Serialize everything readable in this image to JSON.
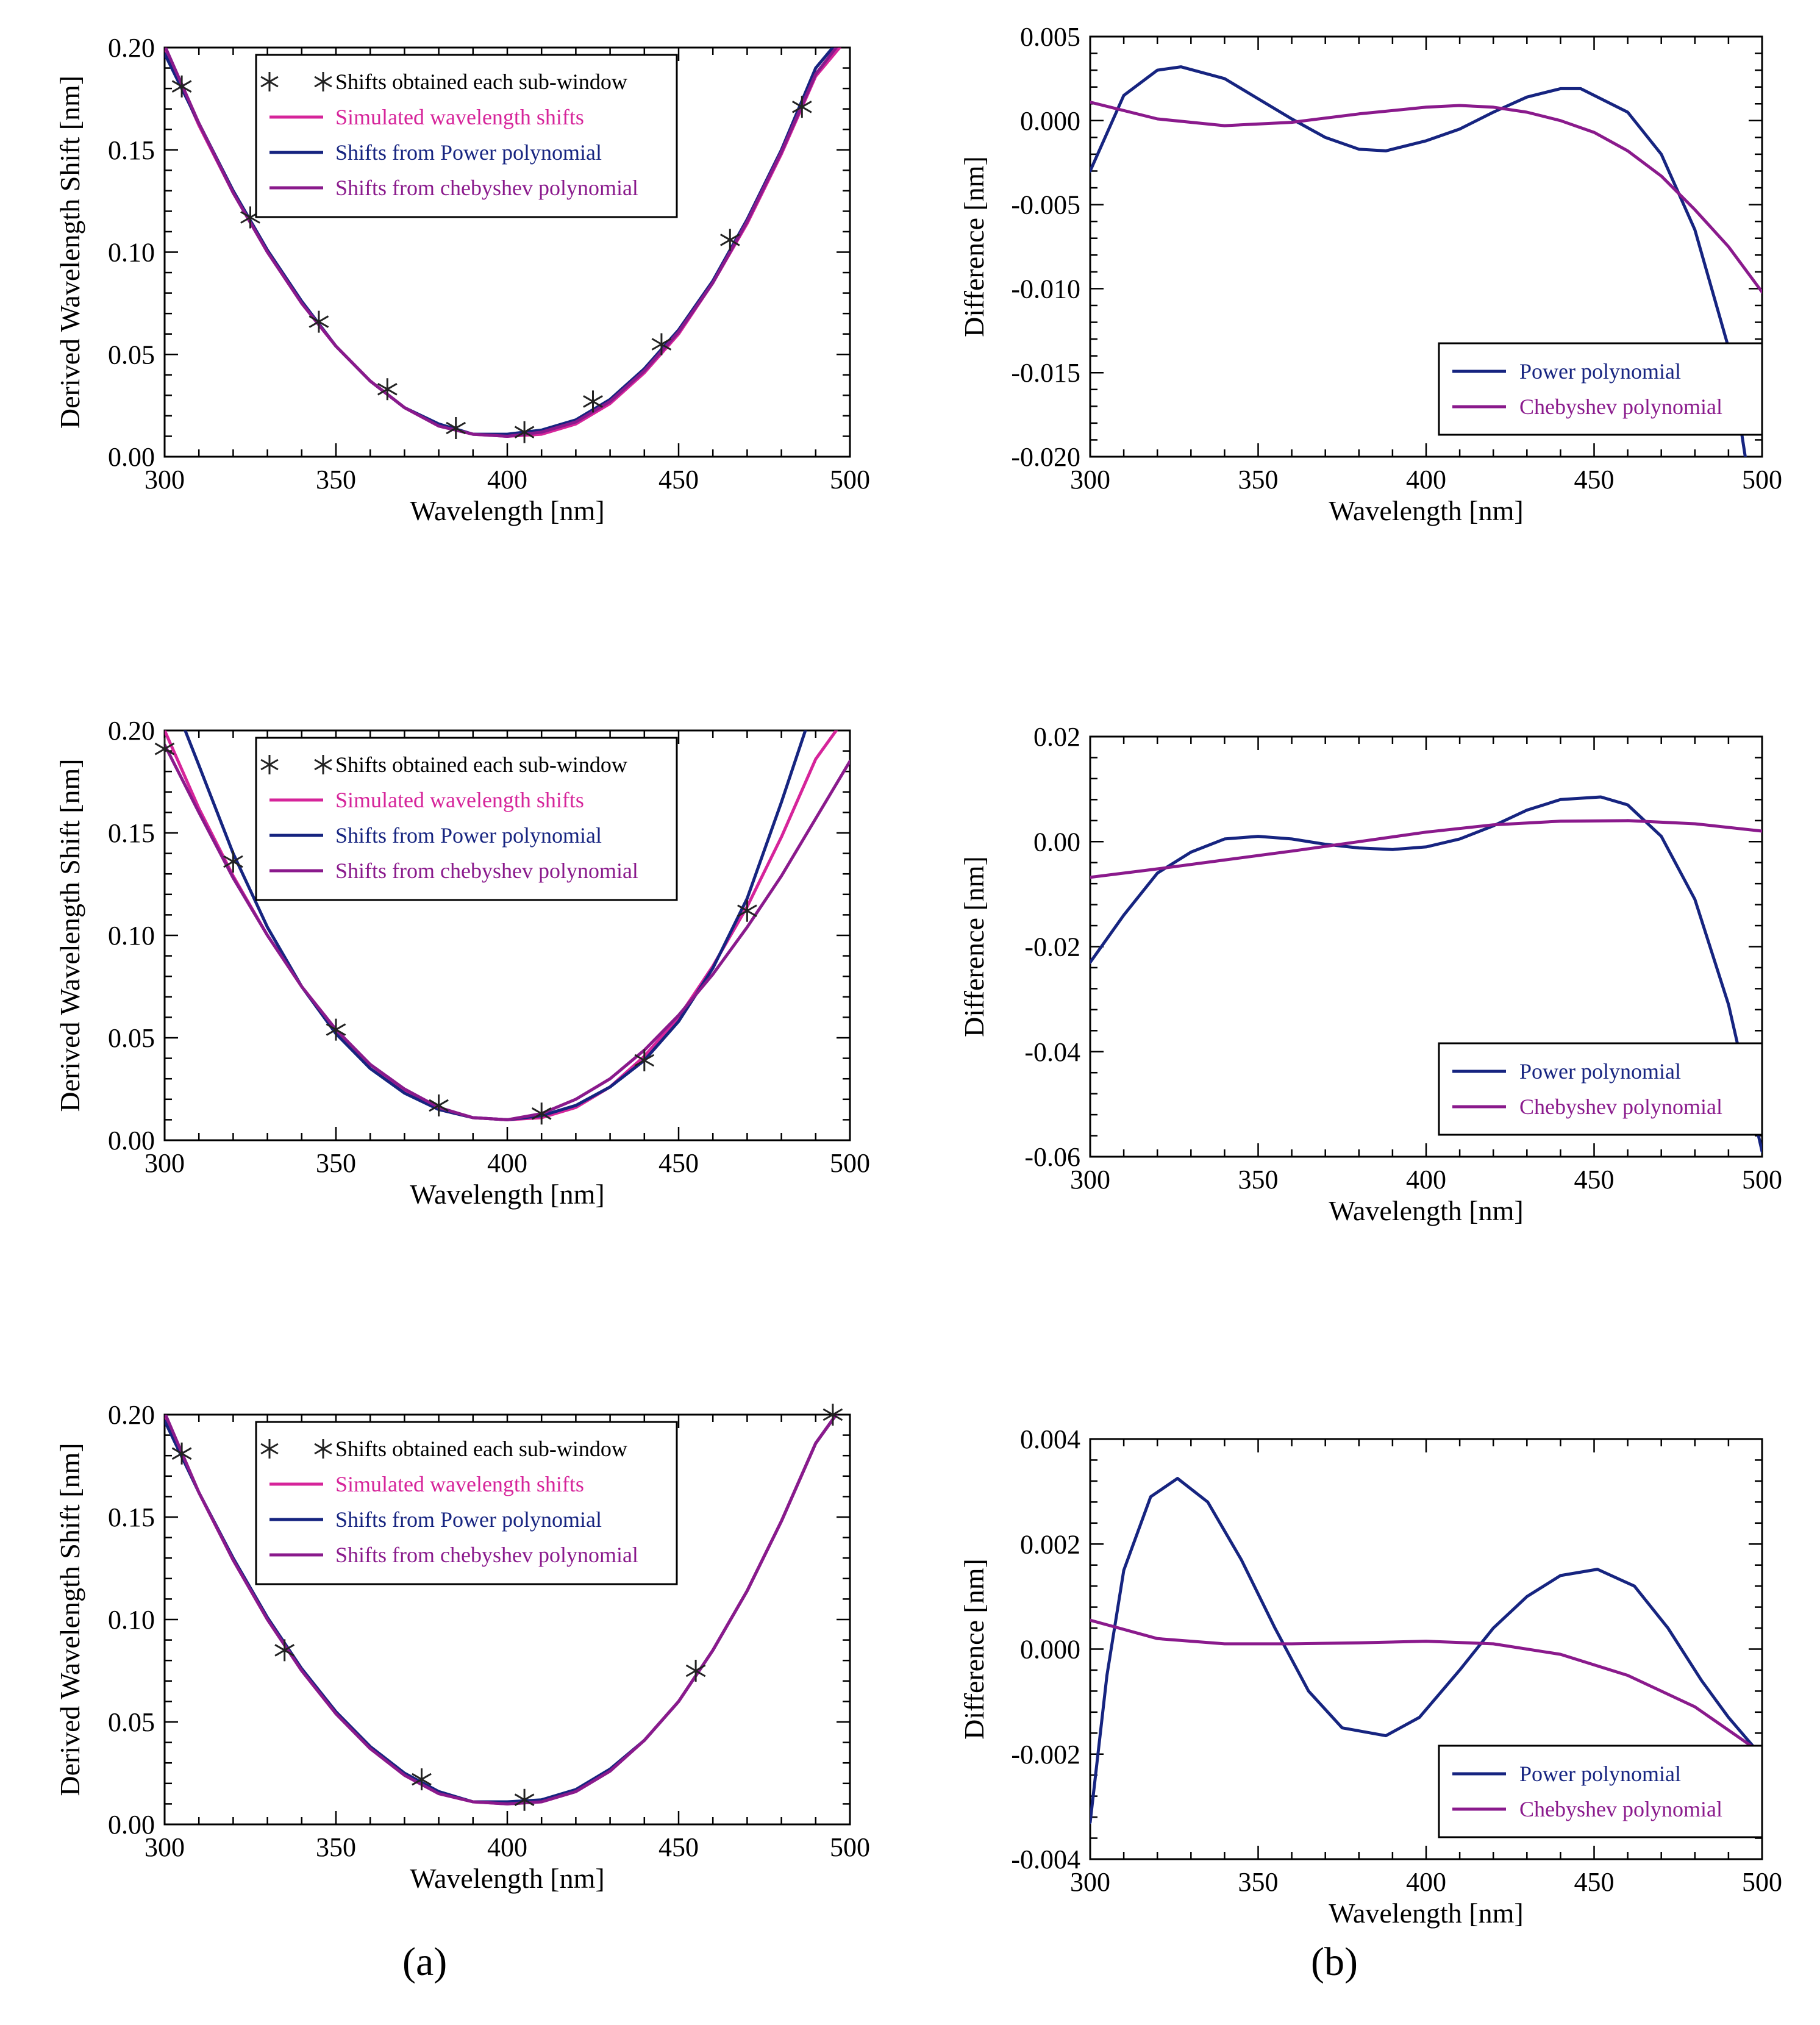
{
  "figure": {
    "labels": {
      "a": "(a)",
      "b": "(b)"
    },
    "colors": {
      "markers": "#222222",
      "simulated": "#d6249a",
      "power": "#162480",
      "chebyshev": "#8a1a8c"
    }
  },
  "chart_data": [
    {
      "id": "a1",
      "type": "line",
      "xlabel": "Wavelength [nm]",
      "ylabel": "Derived Wavelength Shift [nm]",
      "xlim": [
        300,
        500
      ],
      "ylim": [
        0.0,
        0.2
      ],
      "xticks": [
        300,
        350,
        400,
        450,
        500
      ],
      "xtick_labels": [
        "300",
        "350",
        "400",
        "450",
        "500"
      ],
      "yticks": [
        0,
        0.05,
        0.1,
        0.15,
        0.2
      ],
      "ytick_labels": [
        "0.00",
        "0.05",
        "0.10",
        "0.15",
        "0.20"
      ],
      "legend_position": "top-center",
      "legend": [
        "Shifts obtained each sub-window",
        "Simulated wavelength shifts",
        "Shifts from Power polynomial",
        "Shifts from chebyshev polynomial"
      ],
      "markers": {
        "name": "Shifts obtained each sub-window",
        "x": [
          305,
          325,
          345,
          365,
          385,
          405,
          425,
          445,
          465,
          486
        ],
        "y": [
          0.181,
          0.117,
          0.066,
          0.033,
          0.014,
          0.012,
          0.027,
          0.055,
          0.106,
          0.171
        ]
      },
      "series": [
        {
          "name": "Simulated wavelength shifts",
          "x": [
            300,
            310,
            320,
            330,
            340,
            350,
            360,
            370,
            380,
            390,
            400,
            410,
            420,
            430,
            440,
            450,
            460,
            470,
            480,
            490,
            497
          ],
          "y": [
            0.2,
            0.162,
            0.129,
            0.1,
            0.075,
            0.054,
            0.037,
            0.024,
            0.015,
            0.011,
            0.01,
            0.011,
            0.016,
            0.026,
            0.041,
            0.06,
            0.085,
            0.114,
            0.148,
            0.186,
            0.2
          ]
        },
        {
          "name": "Shifts from Power polynomial",
          "x": [
            300,
            310,
            320,
            330,
            340,
            350,
            360,
            370,
            380,
            390,
            400,
            410,
            420,
            430,
            440,
            450,
            460,
            470,
            480,
            490,
            495
          ],
          "y": [
            0.197,
            0.163,
            0.13,
            0.101,
            0.076,
            0.054,
            0.037,
            0.024,
            0.016,
            0.011,
            0.011,
            0.013,
            0.018,
            0.028,
            0.043,
            0.062,
            0.086,
            0.116,
            0.15,
            0.19,
            0.2
          ]
        },
        {
          "name": "Shifts from chebyshev polynomial",
          "x": [
            300,
            310,
            320,
            330,
            340,
            350,
            360,
            370,
            380,
            390,
            400,
            410,
            420,
            430,
            440,
            450,
            460,
            470,
            480,
            490,
            496
          ],
          "y": [
            0.201,
            0.163,
            0.129,
            0.1,
            0.075,
            0.054,
            0.037,
            0.024,
            0.015,
            0.011,
            0.01,
            0.012,
            0.017,
            0.027,
            0.042,
            0.061,
            0.085,
            0.115,
            0.149,
            0.187,
            0.2
          ]
        }
      ]
    },
    {
      "id": "b1",
      "type": "line",
      "xlabel": "Wavelength [nm]",
      "ylabel": "Difference [nm]",
      "xlim": [
        300,
        500
      ],
      "ylim": [
        -0.02,
        0.005
      ],
      "xticks": [
        300,
        350,
        400,
        450,
        500
      ],
      "xtick_labels": [
        "300",
        "350",
        "400",
        "450",
        "500"
      ],
      "yticks": [
        -0.02,
        -0.015,
        -0.01,
        -0.005,
        0.0,
        0.005
      ],
      "ytick_labels": [
        "-0.020",
        "-0.015",
        "-0.010",
        "-0.005",
        "0.000",
        "0.005"
      ],
      "legend_position": "bottom-right",
      "legend": [
        "Power polynomial",
        "Chebyshev polynomial"
      ],
      "series": [
        {
          "name": "Power polynomial",
          "x": [
            300,
            310,
            320,
            327,
            340,
            350,
            360,
            370,
            380,
            388,
            400,
            410,
            420,
            430,
            440,
            446,
            460,
            470,
            480,
            490,
            495
          ],
          "y": [
            -0.003,
            0.0015,
            0.003,
            0.0032,
            0.0025,
            0.0013,
            0.0001,
            -0.001,
            -0.0017,
            -0.0018,
            -0.0012,
            -0.0005,
            0.0005,
            0.0014,
            0.0019,
            0.0019,
            0.0005,
            -0.002,
            -0.0065,
            -0.0135,
            -0.02
          ]
        },
        {
          "name": "Chebyshev polynomial",
          "x": [
            300,
            320,
            340,
            360,
            380,
            400,
            410,
            420,
            430,
            440,
            450,
            460,
            470,
            480,
            490,
            500
          ],
          "y": [
            0.0011,
            0.0001,
            -0.0003,
            -0.0001,
            0.0004,
            0.0008,
            0.0009,
            0.0008,
            0.0005,
            0.0,
            -0.0007,
            -0.0018,
            -0.0033,
            -0.0053,
            -0.0075,
            -0.0102
          ]
        }
      ]
    },
    {
      "id": "a2",
      "type": "line",
      "xlabel": "Wavelength [nm]",
      "ylabel": "Derived Wavelength Shift [nm]",
      "xlim": [
        300,
        500
      ],
      "ylim": [
        0.0,
        0.2
      ],
      "xticks": [
        300,
        350,
        400,
        450,
        500
      ],
      "xtick_labels": [
        "300",
        "350",
        "400",
        "450",
        "500"
      ],
      "yticks": [
        0,
        0.05,
        0.1,
        0.15,
        0.2
      ],
      "ytick_labels": [
        "0.00",
        "0.05",
        "0.10",
        "0.15",
        "0.20"
      ],
      "legend_position": "top-center",
      "legend": [
        "Shifts obtained each sub-window",
        "Simulated wavelength shifts",
        "Shifts from Power polynomial",
        "Shifts from chebyshev polynomial"
      ],
      "markers": {
        "name": "Shifts obtained each sub-window",
        "x": [
          300,
          320,
          350,
          380,
          410,
          440,
          470
        ],
        "y": [
          0.191,
          0.136,
          0.054,
          0.017,
          0.013,
          0.039,
          0.112
        ]
      },
      "series": [
        {
          "name": "Simulated wavelength shifts",
          "x": [
            300,
            310,
            320,
            330,
            340,
            350,
            360,
            370,
            380,
            390,
            400,
            410,
            420,
            430,
            440,
            450,
            460,
            470,
            480,
            490,
            496
          ],
          "y": [
            0.2,
            0.162,
            0.129,
            0.1,
            0.075,
            0.054,
            0.037,
            0.024,
            0.015,
            0.011,
            0.01,
            0.011,
            0.016,
            0.026,
            0.041,
            0.06,
            0.085,
            0.114,
            0.148,
            0.186,
            0.2
          ]
        },
        {
          "name": "Shifts from Power polynomial",
          "x": [
            306,
            310,
            320,
            330,
            340,
            350,
            360,
            370,
            380,
            390,
            400,
            410,
            420,
            430,
            440,
            450,
            460,
            470,
            480,
            487
          ],
          "y": [
            0.2,
            0.183,
            0.14,
            0.104,
            0.075,
            0.052,
            0.035,
            0.023,
            0.015,
            0.011,
            0.01,
            0.012,
            0.017,
            0.026,
            0.039,
            0.058,
            0.084,
            0.118,
            0.165,
            0.2
          ]
        },
        {
          "name": "Shifts from chebyshev polynomial",
          "x": [
            300,
            310,
            320,
            330,
            340,
            350,
            360,
            370,
            380,
            390,
            400,
            410,
            420,
            430,
            440,
            450,
            460,
            470,
            480,
            490,
            500
          ],
          "y": [
            0.193,
            0.16,
            0.128,
            0.1,
            0.075,
            0.054,
            0.037,
            0.025,
            0.016,
            0.011,
            0.01,
            0.013,
            0.02,
            0.03,
            0.044,
            0.061,
            0.081,
            0.104,
            0.129,
            0.157,
            0.185
          ]
        }
      ]
    },
    {
      "id": "b2",
      "type": "line",
      "xlabel": "Wavelength [nm]",
      "ylabel": "Difference [nm]",
      "xlim": [
        300,
        500
      ],
      "ylim": [
        -0.06,
        0.02
      ],
      "xticks": [
        300,
        350,
        400,
        450,
        500
      ],
      "xtick_labels": [
        "300",
        "350",
        "400",
        "450",
        "500"
      ],
      "yticks": [
        -0.06,
        -0.04,
        -0.02,
        0.0,
        0.02
      ],
      "ytick_labels": [
        "-0.06",
        "-0.04",
        "-0.02",
        "0.00",
        "0.02"
      ],
      "legend_position": "bottom-right",
      "legend": [
        "Power polynomial",
        "Chebyshev polynomial"
      ],
      "series": [
        {
          "name": "Power polynomial",
          "x": [
            300,
            310,
            320,
            330,
            340,
            350,
            360,
            370,
            380,
            390,
            400,
            410,
            420,
            430,
            440,
            452,
            460,
            470,
            480,
            490,
            500
          ],
          "y": [
            -0.023,
            -0.014,
            -0.006,
            -0.002,
            0.0005,
            0.001,
            0.0005,
            -0.0005,
            -0.0012,
            -0.0015,
            -0.001,
            0.0005,
            0.003,
            0.006,
            0.008,
            0.0085,
            0.007,
            0.001,
            -0.011,
            -0.031,
            -0.059
          ]
        },
        {
          "name": "Chebyshev polynomial",
          "x": [
            300,
            320,
            340,
            360,
            380,
            400,
            420,
            440,
            460,
            480,
            500
          ],
          "y": [
            -0.0068,
            -0.0052,
            -0.0035,
            -0.0018,
            0.0,
            0.0018,
            0.0032,
            0.0039,
            0.004,
            0.0034,
            0.002
          ]
        }
      ]
    },
    {
      "id": "a3",
      "type": "line",
      "xlabel": "Wavelength [nm]",
      "ylabel": "Derived Wavelength Shift [nm]",
      "xlim": [
        300,
        500
      ],
      "ylim": [
        0.0,
        0.2
      ],
      "xticks": [
        300,
        350,
        400,
        450,
        500
      ],
      "xtick_labels": [
        "300",
        "350",
        "400",
        "450",
        "500"
      ],
      "yticks": [
        0,
        0.05,
        0.1,
        0.15,
        0.2
      ],
      "ytick_labels": [
        "0.00",
        "0.05",
        "0.10",
        "0.15",
        "0.20"
      ],
      "legend_position": "top-center",
      "legend": [
        "Shifts obtained each sub-window",
        "Simulated wavelength shifts",
        "Shifts from Power polynomial",
        "Shifts from chebyshev polynomial"
      ],
      "markers": {
        "name": "Shifts obtained each sub-window",
        "x": [
          305,
          335,
          375,
          405,
          455,
          495
        ],
        "y": [
          0.181,
          0.085,
          0.022,
          0.012,
          0.075,
          0.2
        ]
      },
      "series": [
        {
          "name": "Simulated wavelength shifts",
          "x": [
            300,
            310,
            320,
            330,
            340,
            350,
            360,
            370,
            380,
            390,
            400,
            410,
            420,
            430,
            440,
            450,
            460,
            470,
            480,
            490,
            496
          ],
          "y": [
            0.2,
            0.162,
            0.129,
            0.1,
            0.075,
            0.054,
            0.037,
            0.024,
            0.015,
            0.011,
            0.01,
            0.011,
            0.016,
            0.026,
            0.041,
            0.06,
            0.085,
            0.114,
            0.148,
            0.186,
            0.2
          ]
        },
        {
          "name": "Shifts from Power polynomial",
          "x": [
            300,
            310,
            320,
            330,
            340,
            350,
            360,
            370,
            380,
            390,
            400,
            410,
            420,
            430,
            440,
            450,
            460,
            470,
            480,
            490,
            496
          ],
          "y": [
            0.197,
            0.162,
            0.13,
            0.101,
            0.076,
            0.055,
            0.038,
            0.025,
            0.016,
            0.011,
            0.011,
            0.012,
            0.017,
            0.027,
            0.041,
            0.06,
            0.085,
            0.114,
            0.148,
            0.186,
            0.2
          ]
        },
        {
          "name": "Shifts from chebyshev polynomial",
          "x": [
            300,
            310,
            320,
            330,
            340,
            350,
            360,
            370,
            380,
            390,
            400,
            410,
            420,
            430,
            440,
            450,
            460,
            470,
            480,
            490,
            496
          ],
          "y": [
            0.201,
            0.162,
            0.129,
            0.1,
            0.075,
            0.054,
            0.037,
            0.024,
            0.015,
            0.011,
            0.01,
            0.011,
            0.016,
            0.026,
            0.041,
            0.06,
            0.085,
            0.114,
            0.148,
            0.186,
            0.2
          ]
        }
      ]
    },
    {
      "id": "b3",
      "type": "line",
      "xlabel": "Wavelength [nm]",
      "ylabel": "Difference [nm]",
      "xlim": [
        300,
        500
      ],
      "ylim": [
        -0.004,
        0.004
      ],
      "xticks": [
        300,
        350,
        400,
        450,
        500
      ],
      "xtick_labels": [
        "300",
        "350",
        "400",
        "450",
        "500"
      ],
      "yticks": [
        -0.004,
        -0.002,
        0.0,
        0.002,
        0.004
      ],
      "ytick_labels": [
        "-0.004",
        "-0.002",
        "0.000",
        "0.002",
        "0.004"
      ],
      "legend_position": "bottom-right",
      "legend": [
        "Power polynomial",
        "Chebyshev polynomial"
      ],
      "series": [
        {
          "name": "Power polynomial",
          "x": [
            300,
            305,
            310,
            318,
            326,
            335,
            345,
            355,
            365,
            375,
            388,
            398,
            410,
            420,
            430,
            440,
            451,
            462,
            472,
            482,
            490,
            498
          ],
          "y": [
            -0.0033,
            -0.0005,
            0.0015,
            0.0029,
            0.00325,
            0.0028,
            0.0017,
            0.0004,
            -0.0008,
            -0.0015,
            -0.00165,
            -0.0013,
            -0.0004,
            0.0004,
            0.001,
            0.0014,
            0.00152,
            0.0012,
            0.0004,
            -0.0006,
            -0.0013,
            -0.0019
          ]
        },
        {
          "name": "Chebyshev polynomial",
          "x": [
            300,
            320,
            340,
            360,
            380,
            400,
            420,
            440,
            460,
            480,
            498
          ],
          "y": [
            0.00055,
            0.0002,
            0.0001,
            0.0001,
            0.00012,
            0.00015,
            0.0001,
            -0.0001,
            -0.0005,
            -0.0011,
            -0.0019
          ]
        }
      ]
    }
  ]
}
